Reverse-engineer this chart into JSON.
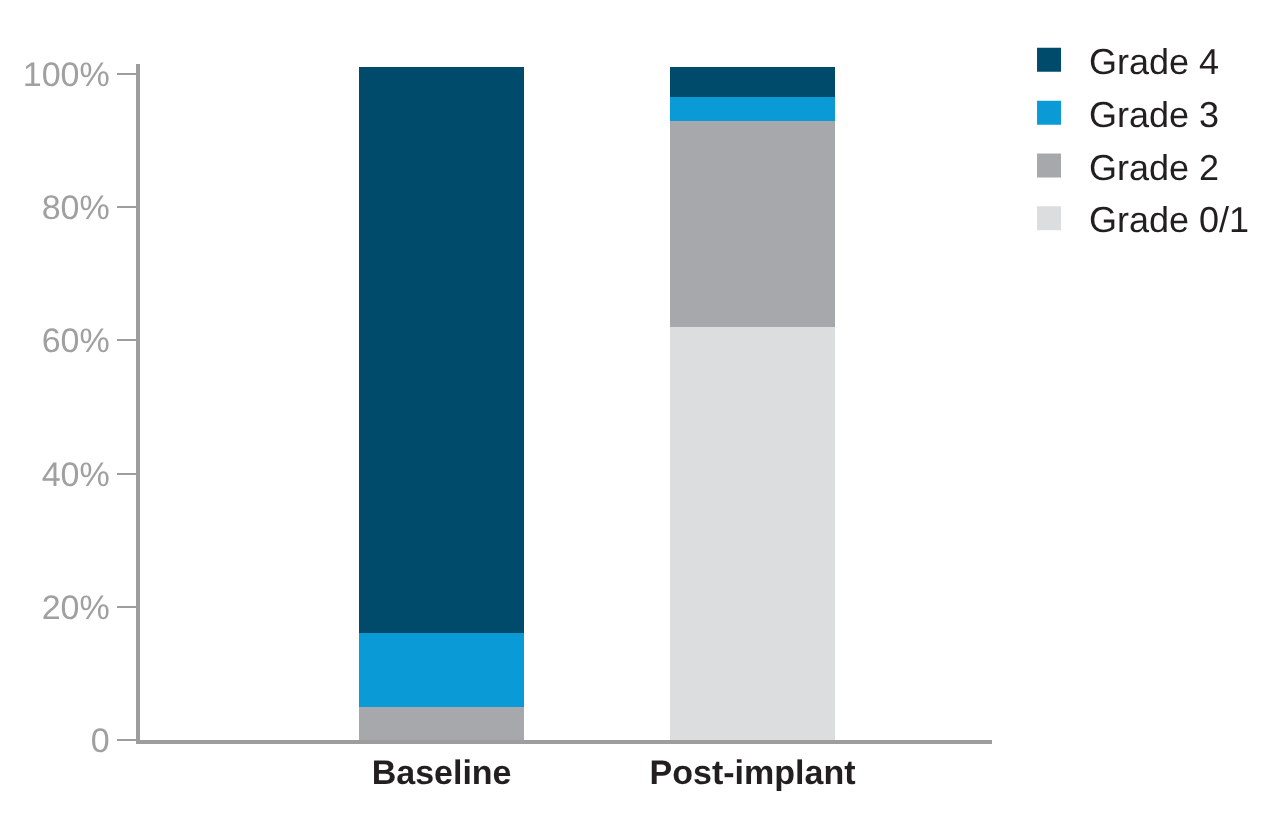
{
  "chart_data": {
    "type": "bar",
    "stacked": true,
    "categories": [
      "Baseline",
      "Post-implant"
    ],
    "series": [
      {
        "name": "Grade 0/1",
        "color": "#dcdddf",
        "values": [
          0,
          62
        ]
      },
      {
        "name": "Grade 2",
        "color": "#a7a8ab",
        "values": [
          5,
          31
        ]
      },
      {
        "name": "Grade 3",
        "color": "#0a9bd7",
        "values": [
          11,
          3.5
        ]
      },
      {
        "name": "Grade 4",
        "color": "#004b6b",
        "values": [
          85,
          4.5
        ]
      }
    ],
    "ylim": [
      0,
      101.5
    ],
    "yticks": [
      {
        "value": 0,
        "label": "0"
      },
      {
        "value": 20,
        "label": "20%"
      },
      {
        "value": 40,
        "label": "40%"
      },
      {
        "value": 60,
        "label": "60%"
      },
      {
        "value": 80,
        "label": "80%"
      },
      {
        "value": 100,
        "label": "100%"
      }
    ],
    "legend": "top right"
  }
}
